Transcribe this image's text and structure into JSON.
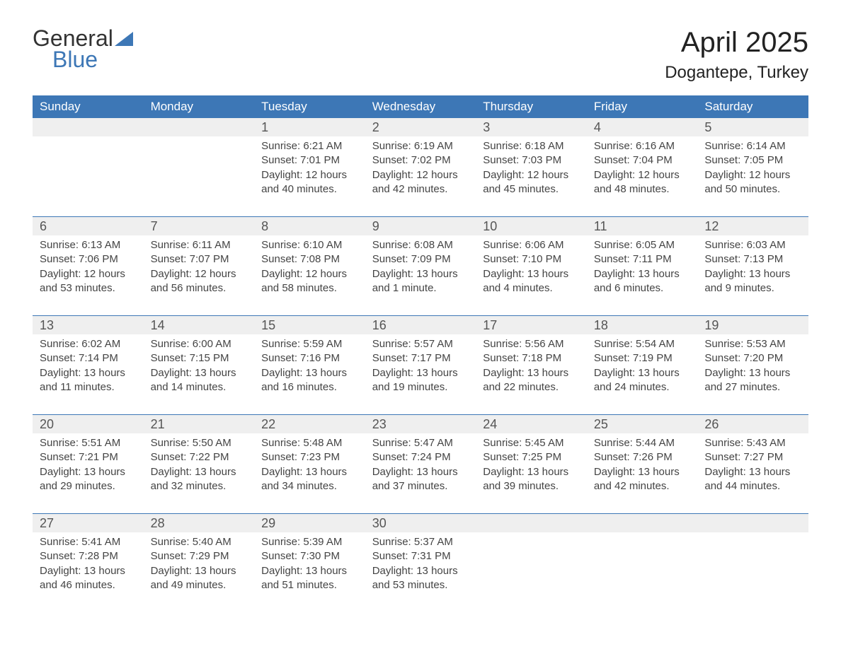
{
  "logo": {
    "general": "General",
    "blue": "Blue"
  },
  "title": "April 2025",
  "location": "Dogantepe, Turkey",
  "colors": {
    "header_bg": "#3d77b6",
    "header_text": "#ffffff",
    "daynum_bg": "#efefef",
    "week_border": "#3d77b6",
    "body_text": "#444444",
    "title_text": "#222222",
    "logo_blue": "#3d77b6",
    "logo_dark": "#333333",
    "page_bg": "#ffffff"
  },
  "weekdays": [
    "Sunday",
    "Monday",
    "Tuesday",
    "Wednesday",
    "Thursday",
    "Friday",
    "Saturday"
  ],
  "weeks": [
    [
      null,
      null,
      {
        "day": "1",
        "sunrise": "Sunrise: 6:21 AM",
        "sunset": "Sunset: 7:01 PM",
        "dl1": "Daylight: 12 hours",
        "dl2": "and 40 minutes."
      },
      {
        "day": "2",
        "sunrise": "Sunrise: 6:19 AM",
        "sunset": "Sunset: 7:02 PM",
        "dl1": "Daylight: 12 hours",
        "dl2": "and 42 minutes."
      },
      {
        "day": "3",
        "sunrise": "Sunrise: 6:18 AM",
        "sunset": "Sunset: 7:03 PM",
        "dl1": "Daylight: 12 hours",
        "dl2": "and 45 minutes."
      },
      {
        "day": "4",
        "sunrise": "Sunrise: 6:16 AM",
        "sunset": "Sunset: 7:04 PM",
        "dl1": "Daylight: 12 hours",
        "dl2": "and 48 minutes."
      },
      {
        "day": "5",
        "sunrise": "Sunrise: 6:14 AM",
        "sunset": "Sunset: 7:05 PM",
        "dl1": "Daylight: 12 hours",
        "dl2": "and 50 minutes."
      }
    ],
    [
      {
        "day": "6",
        "sunrise": "Sunrise: 6:13 AM",
        "sunset": "Sunset: 7:06 PM",
        "dl1": "Daylight: 12 hours",
        "dl2": "and 53 minutes."
      },
      {
        "day": "7",
        "sunrise": "Sunrise: 6:11 AM",
        "sunset": "Sunset: 7:07 PM",
        "dl1": "Daylight: 12 hours",
        "dl2": "and 56 minutes."
      },
      {
        "day": "8",
        "sunrise": "Sunrise: 6:10 AM",
        "sunset": "Sunset: 7:08 PM",
        "dl1": "Daylight: 12 hours",
        "dl2": "and 58 minutes."
      },
      {
        "day": "9",
        "sunrise": "Sunrise: 6:08 AM",
        "sunset": "Sunset: 7:09 PM",
        "dl1": "Daylight: 13 hours",
        "dl2": "and 1 minute."
      },
      {
        "day": "10",
        "sunrise": "Sunrise: 6:06 AM",
        "sunset": "Sunset: 7:10 PM",
        "dl1": "Daylight: 13 hours",
        "dl2": "and 4 minutes."
      },
      {
        "day": "11",
        "sunrise": "Sunrise: 6:05 AM",
        "sunset": "Sunset: 7:11 PM",
        "dl1": "Daylight: 13 hours",
        "dl2": "and 6 minutes."
      },
      {
        "day": "12",
        "sunrise": "Sunrise: 6:03 AM",
        "sunset": "Sunset: 7:13 PM",
        "dl1": "Daylight: 13 hours",
        "dl2": "and 9 minutes."
      }
    ],
    [
      {
        "day": "13",
        "sunrise": "Sunrise: 6:02 AM",
        "sunset": "Sunset: 7:14 PM",
        "dl1": "Daylight: 13 hours",
        "dl2": "and 11 minutes."
      },
      {
        "day": "14",
        "sunrise": "Sunrise: 6:00 AM",
        "sunset": "Sunset: 7:15 PM",
        "dl1": "Daylight: 13 hours",
        "dl2": "and 14 minutes."
      },
      {
        "day": "15",
        "sunrise": "Sunrise: 5:59 AM",
        "sunset": "Sunset: 7:16 PM",
        "dl1": "Daylight: 13 hours",
        "dl2": "and 16 minutes."
      },
      {
        "day": "16",
        "sunrise": "Sunrise: 5:57 AM",
        "sunset": "Sunset: 7:17 PM",
        "dl1": "Daylight: 13 hours",
        "dl2": "and 19 minutes."
      },
      {
        "day": "17",
        "sunrise": "Sunrise: 5:56 AM",
        "sunset": "Sunset: 7:18 PM",
        "dl1": "Daylight: 13 hours",
        "dl2": "and 22 minutes."
      },
      {
        "day": "18",
        "sunrise": "Sunrise: 5:54 AM",
        "sunset": "Sunset: 7:19 PM",
        "dl1": "Daylight: 13 hours",
        "dl2": "and 24 minutes."
      },
      {
        "day": "19",
        "sunrise": "Sunrise: 5:53 AM",
        "sunset": "Sunset: 7:20 PM",
        "dl1": "Daylight: 13 hours",
        "dl2": "and 27 minutes."
      }
    ],
    [
      {
        "day": "20",
        "sunrise": "Sunrise: 5:51 AM",
        "sunset": "Sunset: 7:21 PM",
        "dl1": "Daylight: 13 hours",
        "dl2": "and 29 minutes."
      },
      {
        "day": "21",
        "sunrise": "Sunrise: 5:50 AM",
        "sunset": "Sunset: 7:22 PM",
        "dl1": "Daylight: 13 hours",
        "dl2": "and 32 minutes."
      },
      {
        "day": "22",
        "sunrise": "Sunrise: 5:48 AM",
        "sunset": "Sunset: 7:23 PM",
        "dl1": "Daylight: 13 hours",
        "dl2": "and 34 minutes."
      },
      {
        "day": "23",
        "sunrise": "Sunrise: 5:47 AM",
        "sunset": "Sunset: 7:24 PM",
        "dl1": "Daylight: 13 hours",
        "dl2": "and 37 minutes."
      },
      {
        "day": "24",
        "sunrise": "Sunrise: 5:45 AM",
        "sunset": "Sunset: 7:25 PM",
        "dl1": "Daylight: 13 hours",
        "dl2": "and 39 minutes."
      },
      {
        "day": "25",
        "sunrise": "Sunrise: 5:44 AM",
        "sunset": "Sunset: 7:26 PM",
        "dl1": "Daylight: 13 hours",
        "dl2": "and 42 minutes."
      },
      {
        "day": "26",
        "sunrise": "Sunrise: 5:43 AM",
        "sunset": "Sunset: 7:27 PM",
        "dl1": "Daylight: 13 hours",
        "dl2": "and 44 minutes."
      }
    ],
    [
      {
        "day": "27",
        "sunrise": "Sunrise: 5:41 AM",
        "sunset": "Sunset: 7:28 PM",
        "dl1": "Daylight: 13 hours",
        "dl2": "and 46 minutes."
      },
      {
        "day": "28",
        "sunrise": "Sunrise: 5:40 AM",
        "sunset": "Sunset: 7:29 PM",
        "dl1": "Daylight: 13 hours",
        "dl2": "and 49 minutes."
      },
      {
        "day": "29",
        "sunrise": "Sunrise: 5:39 AM",
        "sunset": "Sunset: 7:30 PM",
        "dl1": "Daylight: 13 hours",
        "dl2": "and 51 minutes."
      },
      {
        "day": "30",
        "sunrise": "Sunrise: 5:37 AM",
        "sunset": "Sunset: 7:31 PM",
        "dl1": "Daylight: 13 hours",
        "dl2": "and 53 minutes."
      },
      null,
      null,
      null
    ]
  ],
  "typography": {
    "title_fontsize": 40,
    "location_fontsize": 24,
    "weekday_fontsize": 17,
    "daynum_fontsize": 18,
    "cell_fontsize": 15,
    "logo_fontsize": 32
  }
}
